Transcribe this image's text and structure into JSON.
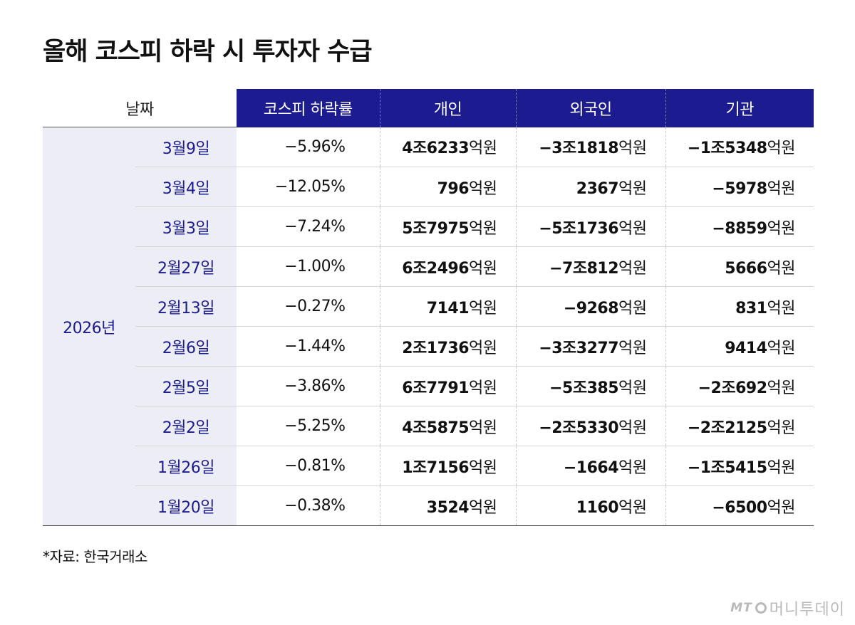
{
  "title": "올해 코스피 하락 시 투자자 수급",
  "chart_data": {
    "type": "table",
    "title": "올해 코스피 하락 시 투자자 수급",
    "columns": [
      "날짜",
      "코스피 하락률",
      "개인",
      "외국인",
      "기관"
    ],
    "year": "2026년",
    "rows": [
      {
        "date": "3월9일",
        "rate": "−5.96%",
        "individual": {
          "v": "4조6233",
          "u": "억원"
        },
        "foreign": {
          "v": "−3조1818",
          "u": "억원"
        },
        "institution": {
          "v": "−1조5348",
          "u": "억원"
        }
      },
      {
        "date": "3월4일",
        "rate": "−12.05%",
        "individual": {
          "v": "796",
          "u": "억원"
        },
        "foreign": {
          "v": "2367",
          "u": "억원"
        },
        "institution": {
          "v": "−5978",
          "u": "억원"
        }
      },
      {
        "date": "3월3일",
        "rate": "−7.24%",
        "individual": {
          "v": "5조7975",
          "u": "억원"
        },
        "foreign": {
          "v": "−5조1736",
          "u": "억원"
        },
        "institution": {
          "v": "−8859",
          "u": "억원"
        }
      },
      {
        "date": "2월27일",
        "rate": "−1.00%",
        "individual": {
          "v": "6조2496",
          "u": "억원"
        },
        "foreign": {
          "v": "−7조812",
          "u": "억원"
        },
        "institution": {
          "v": "5666",
          "u": "억원"
        }
      },
      {
        "date": "2월13일",
        "rate": "−0.27%",
        "individual": {
          "v": "7141",
          "u": "억원"
        },
        "foreign": {
          "v": "−9268",
          "u": "억원"
        },
        "institution": {
          "v": "831",
          "u": "억원"
        }
      },
      {
        "date": "2월6일",
        "rate": "−1.44%",
        "individual": {
          "v": "2조1736",
          "u": "억원"
        },
        "foreign": {
          "v": "−3조3277",
          "u": "억원"
        },
        "institution": {
          "v": "9414",
          "u": "억원"
        }
      },
      {
        "date": "2월5일",
        "rate": "−3.86%",
        "individual": {
          "v": "6조7791",
          "u": "억원"
        },
        "foreign": {
          "v": "−5조385",
          "u": "억원"
        },
        "institution": {
          "v": "−2조692",
          "u": "억원"
        }
      },
      {
        "date": "2월2일",
        "rate": "−5.25%",
        "individual": {
          "v": "4조5875",
          "u": "억원"
        },
        "foreign": {
          "v": "−2조5330",
          "u": "억원"
        },
        "institution": {
          "v": "−2조2125",
          "u": "억원"
        }
      },
      {
        "date": "1월26일",
        "rate": "−0.81%",
        "individual": {
          "v": "1조7156",
          "u": "억원"
        },
        "foreign": {
          "v": "−1664",
          "u": "억원"
        },
        "institution": {
          "v": "−1조5415",
          "u": "억원"
        }
      },
      {
        "date": "1월20일",
        "rate": "−0.38%",
        "individual": {
          "v": "3524",
          "u": "억원"
        },
        "foreign": {
          "v": "1160",
          "u": "억원"
        },
        "institution": {
          "v": "−6500",
          "u": "억원"
        }
      }
    ]
  },
  "source": "*자료: 한국거래소",
  "logo": {
    "mark": "MT",
    "text": "머니투데이"
  },
  "colors": {
    "header_bg": "#1c1b8f",
    "label_text": "#1c1b8f",
    "label_bg": "#ecedf5"
  }
}
